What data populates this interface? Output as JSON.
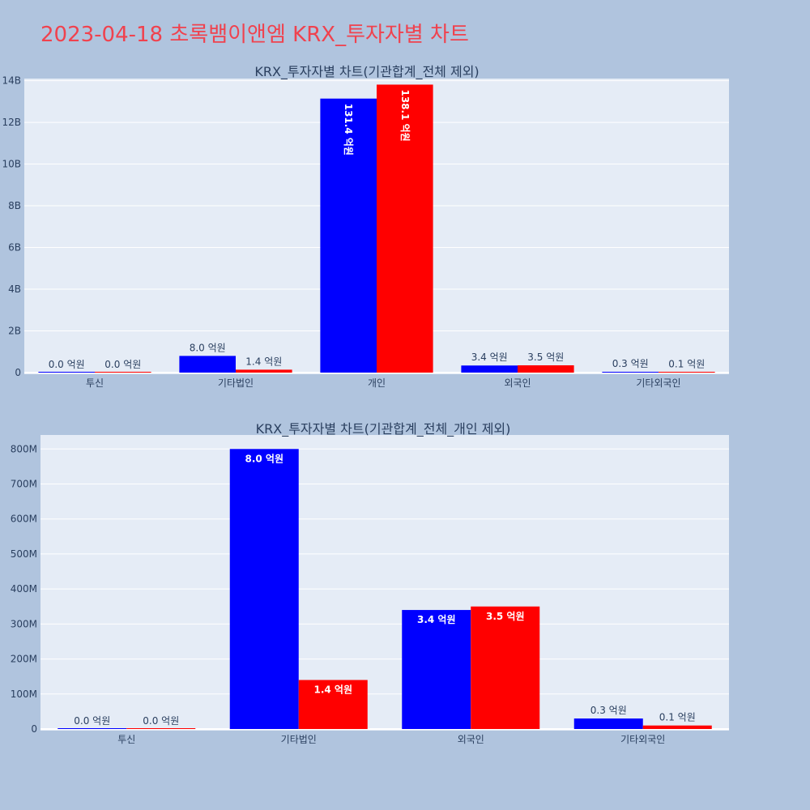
{
  "title": "2023-04-18 초록뱀이앤엠 KRX_투자자별 차트",
  "colors": {
    "background": "#b0c4de",
    "plot_bg": "#e5ecf6",
    "title": "#f0424e",
    "buy": "#0000ff",
    "sell": "#ff0000",
    "text": "#2a3f5f"
  },
  "chart_data": [
    {
      "type": "bar",
      "title": "KRX_투자자별 차트(기관합계_전체 제외)",
      "categories": [
        "투신",
        "기타법인",
        "개인",
        "외국인",
        "기타외국인"
      ],
      "series": [
        {
          "values": [
            0,
            800000000,
            13140000000,
            340000000,
            30000000
          ],
          "labels": [
            "0.0 억원",
            "8.0 억원",
            "131.4 억원",
            "3.4 억원",
            "0.3 억원"
          ],
          "color": "#0000ff"
        },
        {
          "values": [
            0,
            140000000,
            13810000000,
            350000000,
            10000000
          ],
          "labels": [
            "0.0 억원",
            "1.4 억원",
            "138.1 억원",
            "3.5 억원",
            "0.1 억원"
          ],
          "color": "#ff0000"
        }
      ],
      "ylim": [
        0,
        14100000000
      ],
      "yticks": [
        0,
        2000000000,
        4000000000,
        6000000000,
        8000000000,
        10000000000,
        12000000000,
        14000000000
      ],
      "ytick_labels": [
        "0",
        "2B",
        "4B",
        "6B",
        "8B",
        "10B",
        "12B",
        "14B"
      ],
      "grid": true
    },
    {
      "type": "bar",
      "title": "KRX_투자자별 차트(기관합계_전체_개인 제외)",
      "categories": [
        "투신",
        "기타법인",
        "외국인",
        "기타외국인"
      ],
      "series": [
        {
          "values": [
            0,
            800000000,
            340000000,
            30000000
          ],
          "labels": [
            "0.0 억원",
            "8.0 억원",
            "3.4 억원",
            "0.3 억원"
          ],
          "color": "#0000ff"
        },
        {
          "values": [
            0,
            140000000,
            350000000,
            10000000
          ],
          "labels": [
            "0.0 억원",
            "1.4 억원",
            "3.5 억원",
            "0.1 억원"
          ],
          "color": "#ff0000"
        }
      ],
      "ylim": [
        0,
        840000000
      ],
      "yticks": [
        0,
        100000000,
        200000000,
        300000000,
        400000000,
        500000000,
        600000000,
        700000000,
        800000000
      ],
      "ytick_labels": [
        "0",
        "100M",
        "200M",
        "300M",
        "400M",
        "500M",
        "600M",
        "700M",
        "800M"
      ],
      "grid": true
    }
  ]
}
